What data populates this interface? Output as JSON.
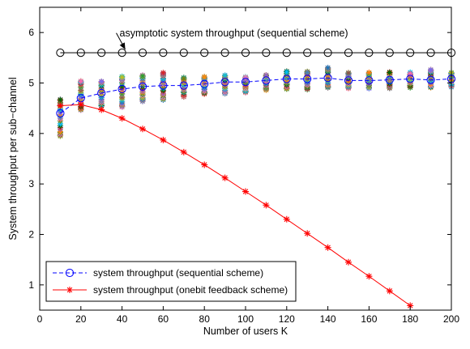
{
  "chart_data": {
    "type": "line",
    "title": "",
    "xlabel": "Number of users K",
    "ylabel": "System throughput per sub−channel",
    "xlim": [
      0,
      200
    ],
    "ylim": [
      0.5,
      6.5
    ],
    "xticks": [
      0,
      20,
      40,
      60,
      80,
      100,
      120,
      140,
      160,
      180,
      200
    ],
    "yticks": [
      1,
      2,
      3,
      4,
      5,
      6
    ],
    "grid": false,
    "legend_position": "bottom-left",
    "series": [
      {
        "name": "asymptotic system throughput (sequential scheme)",
        "style": "black solid line with circle markers",
        "color": "#000000",
        "x": [
          10,
          20,
          30,
          40,
          50,
          60,
          70,
          80,
          90,
          100,
          110,
          120,
          130,
          140,
          150,
          160,
          170,
          180,
          190,
          200
        ],
        "y": [
          5.6,
          5.6,
          5.6,
          5.6,
          5.6,
          5.6,
          5.6,
          5.6,
          5.6,
          5.6,
          5.6,
          5.6,
          5.6,
          5.6,
          5.6,
          5.6,
          5.6,
          5.6,
          5.6,
          5.6
        ]
      },
      {
        "name": "system throughput  (sequential scheme)",
        "style": "blue dashed line with circle markers",
        "color": "#0000ff",
        "x": [
          10,
          20,
          30,
          40,
          50,
          60,
          70,
          80,
          90,
          100,
          110,
          120,
          130,
          140,
          150,
          160,
          170,
          180,
          190,
          200
        ],
        "y": [
          4.4,
          4.7,
          4.8,
          4.88,
          4.93,
          4.95,
          4.95,
          4.98,
          5.02,
          5.02,
          5.05,
          5.08,
          5.08,
          5.1,
          5.05,
          5.05,
          5.06,
          5.08,
          5.06,
          5.08
        ]
      },
      {
        "name": "system throughput (onebit feedback scheme)",
        "style": "red solid line with asterisk markers",
        "color": "#ff0000",
        "x": [
          10,
          20,
          30,
          40,
          50,
          60,
          70,
          80,
          90,
          100,
          110,
          120,
          130,
          140,
          150,
          160,
          170,
          180
        ],
        "y": [
          4.55,
          4.57,
          4.47,
          4.3,
          4.09,
          3.87,
          3.63,
          3.38,
          3.12,
          2.85,
          2.58,
          2.3,
          2.02,
          1.74,
          1.45,
          1.17,
          0.88,
          0.59
        ]
      }
    ],
    "scatter_clusters": {
      "description": "simulated throughput samples plotted with multicolored star markers at each K",
      "x": [
        10,
        20,
        30,
        40,
        50,
        60,
        70,
        80,
        90,
        100,
        110,
        120,
        130,
        140,
        150,
        160,
        170,
        180,
        190,
        200
      ],
      "y_min": [
        3.95,
        4.47,
        4.55,
        4.52,
        4.65,
        4.68,
        4.73,
        4.78,
        4.8,
        4.82,
        4.87,
        4.88,
        4.88,
        4.9,
        4.9,
        4.9,
        4.9,
        4.92,
        4.92,
        4.93
      ],
      "y_max": [
        4.67,
        5.03,
        5.02,
        5.12,
        5.15,
        5.2,
        5.1,
        5.12,
        5.15,
        5.12,
        5.15,
        5.23,
        5.22,
        5.3,
        5.2,
        5.2,
        5.22,
        5.2,
        5.25,
        5.2
      ],
      "colors": [
        "#1f77b4",
        "#17becf",
        "#bcbd22",
        "#8c564b",
        "#e377c2",
        "#2ca02c",
        "#ff7f0e",
        "#9467bd",
        "#d62728",
        "#006400",
        "#00bfff",
        "#808000",
        "#ff69b4",
        "#4682b4",
        "#ff8c00",
        "#7b68ee"
      ]
    },
    "annotations": [
      {
        "text": "asymptotic system throughput (sequential scheme)",
        "points_to": {
          "x": 40,
          "y": 5.6
        }
      }
    ]
  }
}
